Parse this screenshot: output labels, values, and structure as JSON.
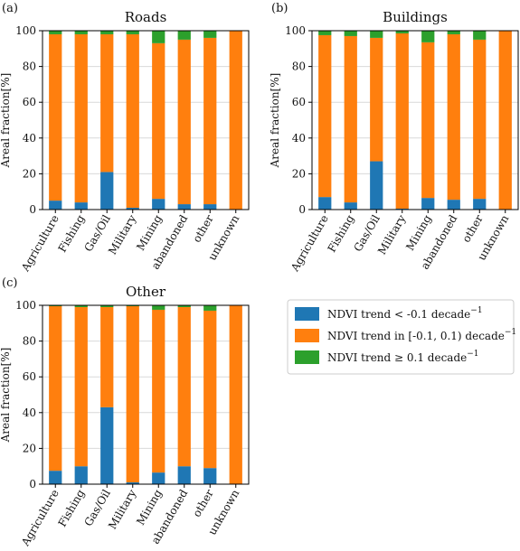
{
  "legend": {
    "entries": [
      {
        "key": "decrease",
        "label": "NDVI trend < -0.1 decade",
        "sup": "−1",
        "color": "#1f77b4"
      },
      {
        "key": "stable",
        "label": "NDVI trend in [-0.1, 0.1) decade",
        "sup": "−1",
        "color": "#ff7f0e"
      },
      {
        "key": "increase",
        "label": "NDVI trend  ≥ 0.1 decade",
        "sup": "−1",
        "color": "#2ca02c"
      }
    ]
  },
  "chart_data": [
    {
      "type": "bar",
      "stacked": true,
      "label": "(a)",
      "title": "Roads",
      "ylabel": "Areal fraction[%]",
      "ylim": [
        0,
        100
      ],
      "yticks": [
        "0",
        "20",
        "40",
        "60",
        "80",
        "100"
      ],
      "categories": [
        "Agriculture",
        "Fishing",
        "Gas/Oil",
        "Military",
        "Mining",
        "abandoned",
        "other",
        "unknown"
      ],
      "grid": true,
      "series": [
        {
          "name": "NDVI trend < -0.1 decade⁻¹",
          "color": "#1f77b4",
          "values": [
            5,
            4,
            21,
            1,
            6,
            3,
            3,
            0
          ]
        },
        {
          "name": "NDVI trend in [-0.1, 0.1) decade⁻¹",
          "color": "#ff7f0e",
          "values": [
            93,
            94,
            77,
            97,
            87,
            92,
            93,
            100
          ]
        },
        {
          "name": "NDVI trend ≥ 0.1 decade⁻¹",
          "color": "#2ca02c",
          "values": [
            2,
            2,
            2,
            2,
            7,
            5,
            4,
            0
          ]
        }
      ]
    },
    {
      "type": "bar",
      "stacked": true,
      "label": "(b)",
      "title": "Buildings",
      "ylabel": "Areal fraction[%]",
      "ylim": [
        0,
        100
      ],
      "yticks": [
        "0",
        "20",
        "40",
        "60",
        "80",
        "100"
      ],
      "categories": [
        "Agriculture",
        "Fishing",
        "Gas/Oil",
        "Military",
        "Mining",
        "abandoned",
        "other",
        "unknown"
      ],
      "grid": true,
      "series": [
        {
          "name": "NDVI trend < -0.1 decade⁻¹",
          "color": "#1f77b4",
          "values": [
            7,
            4,
            27,
            0.5,
            6.5,
            5.5,
            6,
            0
          ]
        },
        {
          "name": "NDVI trend in [-0.1, 0.1) decade⁻¹",
          "color": "#ff7f0e",
          "values": [
            90.5,
            93,
            69,
            98,
            87,
            92.5,
            89,
            100
          ]
        },
        {
          "name": "NDVI trend ≥ 0.1 decade⁻¹",
          "color": "#2ca02c",
          "values": [
            2.5,
            3,
            4,
            1.5,
            6.5,
            2,
            5,
            0
          ]
        }
      ]
    },
    {
      "type": "bar",
      "stacked": true,
      "label": "(c)",
      "title": "Other",
      "ylabel": "Areal fraction[%]",
      "ylim": [
        0,
        100
      ],
      "yticks": [
        "0",
        "20",
        "40",
        "60",
        "80",
        "100"
      ],
      "categories": [
        "Agriculture",
        "Fishing",
        "Gas/Oil",
        "Military",
        "Mining",
        "abandoned",
        "other",
        "unknown"
      ],
      "grid": true,
      "series": [
        {
          "name": "NDVI trend < -0.1 decade⁻¹",
          "color": "#1f77b4",
          "values": [
            7.5,
            10,
            43,
            1,
            6.5,
            10,
            9,
            0
          ]
        },
        {
          "name": "NDVI trend in [-0.1, 0.1) decade⁻¹",
          "color": "#ff7f0e",
          "values": [
            92,
            89,
            56,
            98.5,
            91,
            89,
            88,
            100
          ]
        },
        {
          "name": "NDVI trend ≥ 0.1 decade⁻¹",
          "color": "#2ca02c",
          "values": [
            0.5,
            1,
            1,
            0.5,
            2.5,
            1,
            3,
            0
          ]
        }
      ]
    }
  ]
}
